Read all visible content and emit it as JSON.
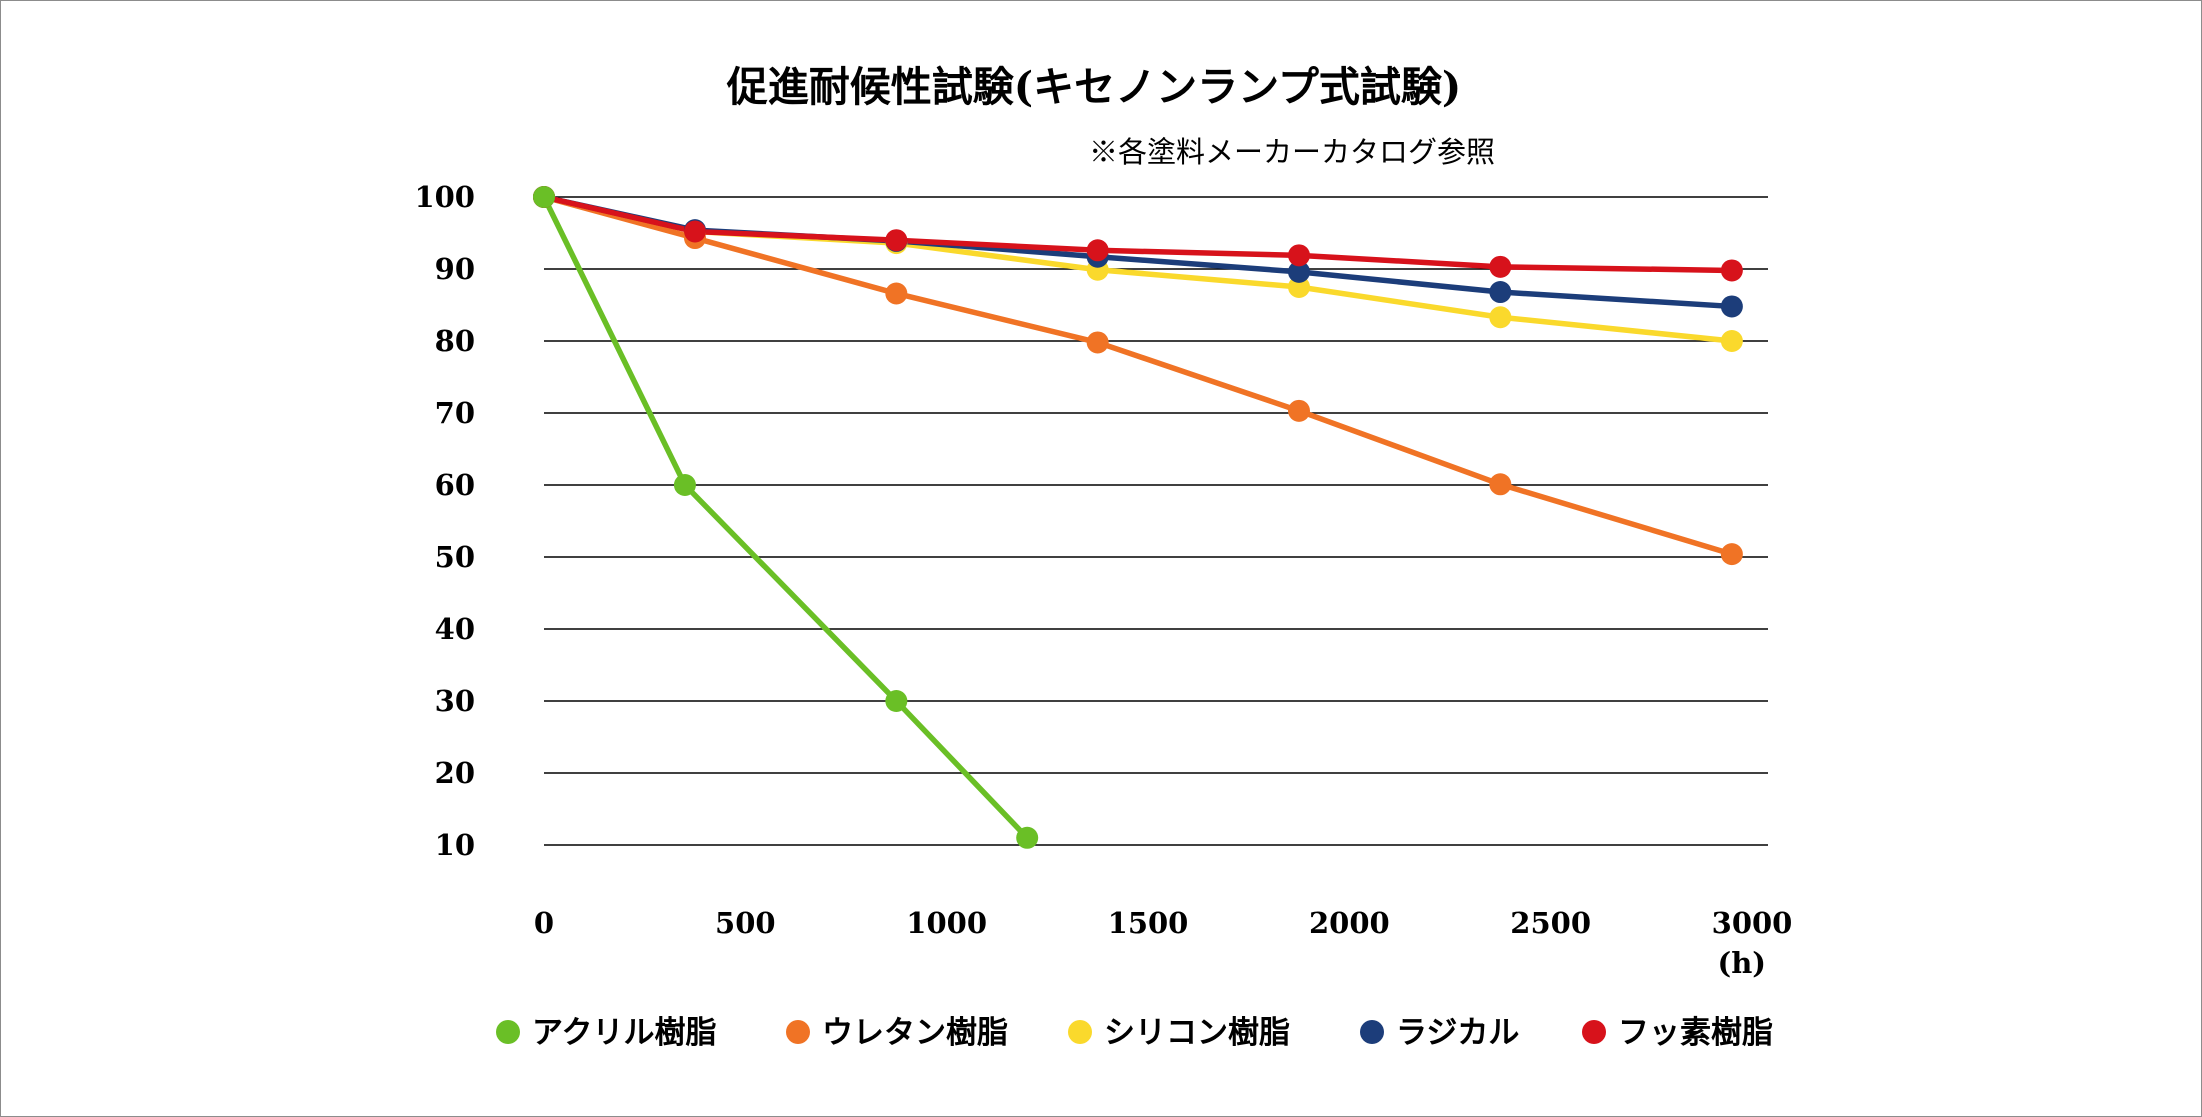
{
  "chart_data": {
    "type": "line",
    "title": "促進耐候性試験(キセノンランプ式試験)",
    "subtitle": "※各塗料メーカーカタログ参照",
    "x_unit_label": "(h)",
    "x_ticks": [
      0,
      500,
      1000,
      1500,
      2000,
      2500,
      3000
    ],
    "y_ticks": [
      10,
      20,
      30,
      40,
      50,
      60,
      70,
      80,
      90,
      100
    ],
    "xlim": [
      0,
      3000
    ],
    "ylim": [
      10,
      100
    ],
    "grid": "horizontal",
    "legend_position": "bottom",
    "series": [
      {
        "name": "アクリル樹脂",
        "color": "#6abf26",
        "points": [
          [
            0,
            100
          ],
          [
            350,
            60
          ],
          [
            875,
            30
          ],
          [
            1200,
            11
          ]
        ]
      },
      {
        "name": "ウレタン樹脂",
        "color": "#f07325",
        "points": [
          [
            0,
            100
          ],
          [
            375,
            94.3
          ],
          [
            875,
            86.6
          ],
          [
            1375,
            79.8
          ],
          [
            1875,
            70.3
          ],
          [
            2375,
            60.1
          ],
          [
            2950,
            50.4
          ]
        ]
      },
      {
        "name": "シリコン樹脂",
        "color": "#fad92c",
        "points": [
          [
            0,
            100
          ],
          [
            375,
            95.2
          ],
          [
            875,
            93.6
          ],
          [
            1375,
            89.9
          ],
          [
            1875,
            87.5
          ],
          [
            2375,
            83.3
          ],
          [
            2950,
            80
          ]
        ]
      },
      {
        "name": "ラジカル",
        "color": "#1c3d7a",
        "points": [
          [
            0,
            100
          ],
          [
            375,
            95.4
          ],
          [
            875,
            93.9
          ],
          [
            1375,
            91.7
          ],
          [
            1875,
            89.6
          ],
          [
            2375,
            86.8
          ],
          [
            2950,
            84.8
          ]
        ]
      },
      {
        "name": "フッ素樹脂",
        "color": "#d7121b",
        "points": [
          [
            0,
            100
          ],
          [
            375,
            95.2
          ],
          [
            875,
            94.0
          ],
          [
            1375,
            92.6
          ],
          [
            1875,
            91.9
          ],
          [
            2375,
            90.3
          ],
          [
            2950,
            89.8
          ]
        ]
      }
    ]
  }
}
